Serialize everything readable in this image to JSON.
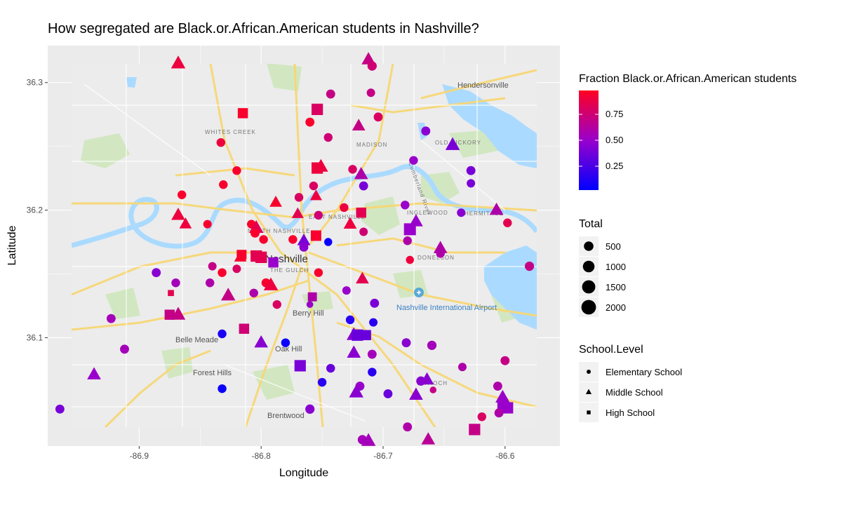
{
  "chart_data": {
    "type": "scatter",
    "title": "How segregated are Black.or.African.American students in Nashville?",
    "xlabel": "Longitude",
    "ylabel": "Latitude",
    "xlim": [
      -86.975,
      -86.555
    ],
    "ylim": [
      36.015,
      36.329
    ],
    "x_ticks": [
      -86.9,
      -86.8,
      -86.7,
      -86.6
    ],
    "x_tick_labels": [
      "-86.9",
      "-86.8",
      "-86.7",
      "-86.6"
    ],
    "y_ticks": [
      36.1,
      36.2,
      36.3
    ],
    "y_tick_labels": [
      "36.1",
      "36.2",
      "36.3"
    ],
    "grid": true,
    "legend_position": "right",
    "color_legend": {
      "title": "Fraction Black.or.African.American students",
      "ticks": [
        0.25,
        0.5,
        0.75
      ],
      "tick_labels": [
        "0.25",
        "0.50",
        "0.75"
      ],
      "range": [
        0.02,
        0.98
      ],
      "low_color": "#0000ff",
      "mid_color": "#9900cc",
      "high_color": "#ff0022"
    },
    "size_legend": {
      "title": "Total",
      "values": [
        500,
        1000,
        1500,
        2000
      ],
      "labels": [
        "500",
        "1000",
        "1500",
        "2000"
      ]
    },
    "shape_legend": {
      "title": "School.Level",
      "items": [
        {
          "label": "Elementary School",
          "shape": "circle"
        },
        {
          "label": "Middle School",
          "shape": "triangle"
        },
        {
          "label": "High School",
          "shape": "square"
        }
      ]
    },
    "points": [
      {
        "lon": -86.868,
        "lat": 36.315,
        "frac": 0.9,
        "total": 700,
        "shape": "triangle"
      },
      {
        "lon": -86.712,
        "lat": 36.318,
        "frac": 0.7,
        "total": 600,
        "shape": "triangle"
      },
      {
        "lon": -86.709,
        "lat": 36.313,
        "frac": 0.75,
        "total": 450,
        "shape": "circle"
      },
      {
        "lon": -86.815,
        "lat": 36.276,
        "frac": 0.95,
        "total": 900,
        "shape": "square"
      },
      {
        "lon": -86.743,
        "lat": 36.291,
        "frac": 0.7,
        "total": 400,
        "shape": "circle"
      },
      {
        "lon": -86.71,
        "lat": 36.292,
        "frac": 0.7,
        "total": 300,
        "shape": "circle"
      },
      {
        "lon": -86.754,
        "lat": 36.279,
        "frac": 0.8,
        "total": 1300,
        "shape": "square"
      },
      {
        "lon": -86.76,
        "lat": 36.269,
        "frac": 0.95,
        "total": 400,
        "shape": "circle"
      },
      {
        "lon": -86.704,
        "lat": 36.273,
        "frac": 0.8,
        "total": 400,
        "shape": "circle"
      },
      {
        "lon": -86.72,
        "lat": 36.266,
        "frac": 0.7,
        "total": 500,
        "shape": "triangle"
      },
      {
        "lon": -86.745,
        "lat": 36.257,
        "frac": 0.75,
        "total": 350,
        "shape": "circle"
      },
      {
        "lon": -86.833,
        "lat": 36.253,
        "frac": 0.9,
        "total": 350,
        "shape": "circle"
      },
      {
        "lon": -86.665,
        "lat": 36.262,
        "frac": 0.45,
        "total": 400,
        "shape": "circle"
      },
      {
        "lon": -86.643,
        "lat": 36.251,
        "frac": 0.4,
        "total": 700,
        "shape": "triangle"
      },
      {
        "lon": -86.675,
        "lat": 36.239,
        "frac": 0.5,
        "total": 350,
        "shape": "circle"
      },
      {
        "lon": -86.754,
        "lat": 36.233,
        "frac": 0.9,
        "total": 1300,
        "shape": "square"
      },
      {
        "lon": -86.751,
        "lat": 36.234,
        "frac": 0.9,
        "total": 700,
        "shape": "triangle"
      },
      {
        "lon": -86.725,
        "lat": 36.232,
        "frac": 0.8,
        "total": 350,
        "shape": "circle"
      },
      {
        "lon": -86.718,
        "lat": 36.228,
        "frac": 0.6,
        "total": 600,
        "shape": "triangle"
      },
      {
        "lon": -86.82,
        "lat": 36.231,
        "frac": 0.95,
        "total": 350,
        "shape": "circle"
      },
      {
        "lon": -86.628,
        "lat": 36.231,
        "frac": 0.4,
        "total": 400,
        "shape": "circle"
      },
      {
        "lon": -86.628,
        "lat": 36.221,
        "frac": 0.4,
        "total": 300,
        "shape": "circle"
      },
      {
        "lon": -86.831,
        "lat": 36.22,
        "frac": 0.95,
        "total": 350,
        "shape": "circle"
      },
      {
        "lon": -86.757,
        "lat": 36.219,
        "frac": 0.8,
        "total": 350,
        "shape": "circle"
      },
      {
        "lon": -86.716,
        "lat": 36.219,
        "frac": 0.4,
        "total": 400,
        "shape": "circle"
      },
      {
        "lon": -86.865,
        "lat": 36.212,
        "frac": 0.95,
        "total": 350,
        "shape": "circle"
      },
      {
        "lon": -86.788,
        "lat": 36.206,
        "frac": 0.95,
        "total": 400,
        "shape": "triangle"
      },
      {
        "lon": -86.769,
        "lat": 36.21,
        "frac": 0.8,
        "total": 350,
        "shape": "circle"
      },
      {
        "lon": -86.755,
        "lat": 36.211,
        "frac": 0.9,
        "total": 350,
        "shape": "triangle"
      },
      {
        "lon": -86.682,
        "lat": 36.204,
        "frac": 0.5,
        "total": 350,
        "shape": "circle"
      },
      {
        "lon": -86.732,
        "lat": 36.202,
        "frac": 0.9,
        "total": 350,
        "shape": "circle"
      },
      {
        "lon": -86.753,
        "lat": 36.196,
        "frac": 0.75,
        "total": 350,
        "shape": "circle"
      },
      {
        "lon": -86.718,
        "lat": 36.198,
        "frac": 0.85,
        "total": 900,
        "shape": "square"
      },
      {
        "lon": -86.636,
        "lat": 36.198,
        "frac": 0.45,
        "total": 300,
        "shape": "circle"
      },
      {
        "lon": -86.607,
        "lat": 36.2,
        "frac": 0.6,
        "total": 600,
        "shape": "triangle"
      },
      {
        "lon": -86.77,
        "lat": 36.197,
        "frac": 0.85,
        "total": 350,
        "shape": "triangle"
      },
      {
        "lon": -86.868,
        "lat": 36.196,
        "frac": 0.9,
        "total": 600,
        "shape": "triangle"
      },
      {
        "lon": -86.862,
        "lat": 36.189,
        "frac": 0.9,
        "total": 400,
        "shape": "triangle"
      },
      {
        "lon": -86.844,
        "lat": 36.189,
        "frac": 0.95,
        "total": 300,
        "shape": "circle"
      },
      {
        "lon": -86.808,
        "lat": 36.189,
        "frac": 0.95,
        "total": 350,
        "shape": "circle"
      },
      {
        "lon": -86.804,
        "lat": 36.186,
        "frac": 0.85,
        "total": 700,
        "shape": "triangle"
      },
      {
        "lon": -86.727,
        "lat": 36.189,
        "frac": 0.9,
        "total": 500,
        "shape": "triangle"
      },
      {
        "lon": -86.598,
        "lat": 36.19,
        "frac": 0.85,
        "total": 350,
        "shape": "circle"
      },
      {
        "lon": -86.673,
        "lat": 36.191,
        "frac": 0.5,
        "total": 600,
        "shape": "triangle"
      },
      {
        "lon": -86.678,
        "lat": 36.185,
        "frac": 0.5,
        "total": 1500,
        "shape": "square"
      },
      {
        "lon": -86.716,
        "lat": 36.183,
        "frac": 0.75,
        "total": 300,
        "shape": "circle"
      },
      {
        "lon": -86.755,
        "lat": 36.18,
        "frac": 0.95,
        "total": 1000,
        "shape": "square"
      },
      {
        "lon": -86.765,
        "lat": 36.176,
        "frac": 0.4,
        "total": 500,
        "shape": "triangle"
      },
      {
        "lon": -86.805,
        "lat": 36.182,
        "frac": 0.95,
        "total": 400,
        "shape": "circle"
      },
      {
        "lon": -86.798,
        "lat": 36.177,
        "frac": 0.95,
        "total": 350,
        "shape": "circle"
      },
      {
        "lon": -86.774,
        "lat": 36.177,
        "frac": 0.95,
        "total": 350,
        "shape": "circle"
      },
      {
        "lon": -86.745,
        "lat": 36.175,
        "frac": 0.05,
        "total": 250,
        "shape": "circle"
      },
      {
        "lon": -86.765,
        "lat": 36.171,
        "frac": 0.45,
        "total": 400,
        "shape": "circle"
      },
      {
        "lon": -86.68,
        "lat": 36.176,
        "frac": 0.6,
        "total": 350,
        "shape": "circle"
      },
      {
        "lon": -86.653,
        "lat": 36.17,
        "frac": 0.6,
        "total": 600,
        "shape": "triangle"
      },
      {
        "lon": -86.653,
        "lat": 36.166,
        "frac": 0.6,
        "total": 350,
        "shape": "circle"
      },
      {
        "lon": -86.816,
        "lat": 36.165,
        "frac": 0.95,
        "total": 800,
        "shape": "square"
      },
      {
        "lon": -86.804,
        "lat": 36.164,
        "frac": 0.85,
        "total": 1300,
        "shape": "square"
      },
      {
        "lon": -86.8,
        "lat": 36.163,
        "frac": 0.85,
        "total": 1300,
        "shape": "square"
      },
      {
        "lon": -86.817,
        "lat": 36.163,
        "frac": 0.95,
        "total": 400,
        "shape": "triangle"
      },
      {
        "lon": -86.79,
        "lat": 36.159,
        "frac": 0.5,
        "total": 900,
        "shape": "square"
      },
      {
        "lon": -86.678,
        "lat": 36.161,
        "frac": 0.9,
        "total": 250,
        "shape": "circle"
      },
      {
        "lon": -86.58,
        "lat": 36.156,
        "frac": 0.7,
        "total": 450,
        "shape": "circle"
      },
      {
        "lon": -86.84,
        "lat": 36.156,
        "frac": 0.7,
        "total": 300,
        "shape": "circle"
      },
      {
        "lon": -86.82,
        "lat": 36.154,
        "frac": 0.8,
        "total": 300,
        "shape": "circle"
      },
      {
        "lon": -86.886,
        "lat": 36.151,
        "frac": 0.45,
        "total": 400,
        "shape": "circle"
      },
      {
        "lon": -86.832,
        "lat": 36.151,
        "frac": 0.95,
        "total": 350,
        "shape": "circle"
      },
      {
        "lon": -86.753,
        "lat": 36.151,
        "frac": 0.95,
        "total": 350,
        "shape": "circle"
      },
      {
        "lon": -86.717,
        "lat": 36.146,
        "frac": 0.85,
        "total": 500,
        "shape": "triangle"
      },
      {
        "lon": -86.796,
        "lat": 36.143,
        "frac": 0.95,
        "total": 400,
        "shape": "circle"
      },
      {
        "lon": -86.792,
        "lat": 36.141,
        "frac": 0.9,
        "total": 700,
        "shape": "triangle"
      },
      {
        "lon": -86.842,
        "lat": 36.143,
        "frac": 0.6,
        "total": 350,
        "shape": "circle"
      },
      {
        "lon": -86.87,
        "lat": 36.143,
        "frac": 0.55,
        "total": 350,
        "shape": "circle"
      },
      {
        "lon": -86.806,
        "lat": 36.135,
        "frac": 0.6,
        "total": 350,
        "shape": "circle"
      },
      {
        "lon": -86.827,
        "lat": 36.133,
        "frac": 0.7,
        "total": 700,
        "shape": "triangle"
      },
      {
        "lon": -86.73,
        "lat": 36.137,
        "frac": 0.5,
        "total": 300,
        "shape": "circle"
      },
      {
        "lon": -86.758,
        "lat": 36.132,
        "frac": 0.6,
        "total": 600,
        "shape": "square"
      },
      {
        "lon": -86.874,
        "lat": 36.135,
        "frac": 0.85,
        "total": 100,
        "shape": "square"
      },
      {
        "lon": -86.787,
        "lat": 36.126,
        "frac": 0.8,
        "total": 350,
        "shape": "circle"
      },
      {
        "lon": -86.76,
        "lat": 36.126,
        "frac": 0.5,
        "total": 100,
        "shape": "circle"
      },
      {
        "lon": -86.707,
        "lat": 36.127,
        "frac": 0.4,
        "total": 400,
        "shape": "circle"
      },
      {
        "lon": -86.875,
        "lat": 36.118,
        "frac": 0.7,
        "total": 900,
        "shape": "square"
      },
      {
        "lon": -86.868,
        "lat": 36.118,
        "frac": 0.7,
        "total": 700,
        "shape": "triangle"
      },
      {
        "lon": -86.923,
        "lat": 36.115,
        "frac": 0.55,
        "total": 400,
        "shape": "circle"
      },
      {
        "lon": -86.814,
        "lat": 36.107,
        "frac": 0.75,
        "total": 900,
        "shape": "square"
      },
      {
        "lon": -86.727,
        "lat": 36.114,
        "frac": 0.15,
        "total": 350,
        "shape": "circle"
      },
      {
        "lon": -86.708,
        "lat": 36.112,
        "frac": 0.15,
        "total": 300,
        "shape": "circle"
      },
      {
        "lon": -86.832,
        "lat": 36.103,
        "frac": 0.1,
        "total": 350,
        "shape": "circle"
      },
      {
        "lon": -86.724,
        "lat": 36.102,
        "frac": 0.45,
        "total": 700,
        "shape": "triangle"
      },
      {
        "lon": -86.721,
        "lat": 36.102,
        "frac": 0.35,
        "total": 1300,
        "shape": "square"
      },
      {
        "lon": -86.714,
        "lat": 36.102,
        "frac": 0.35,
        "total": 900,
        "shape": "square"
      },
      {
        "lon": -86.8,
        "lat": 36.096,
        "frac": 0.45,
        "total": 600,
        "shape": "triangle"
      },
      {
        "lon": -86.78,
        "lat": 36.096,
        "frac": 0.05,
        "total": 350,
        "shape": "circle"
      },
      {
        "lon": -86.681,
        "lat": 36.096,
        "frac": 0.45,
        "total": 400,
        "shape": "circle"
      },
      {
        "lon": -86.66,
        "lat": 36.094,
        "frac": 0.55,
        "total": 450,
        "shape": "circle"
      },
      {
        "lon": -86.912,
        "lat": 36.091,
        "frac": 0.55,
        "total": 400,
        "shape": "circle"
      },
      {
        "lon": -86.724,
        "lat": 36.088,
        "frac": 0.45,
        "total": 600,
        "shape": "triangle"
      },
      {
        "lon": -86.709,
        "lat": 36.087,
        "frac": 0.55,
        "total": 400,
        "shape": "circle"
      },
      {
        "lon": -86.6,
        "lat": 36.082,
        "frac": 0.7,
        "total": 400,
        "shape": "circle"
      },
      {
        "lon": -86.768,
        "lat": 36.078,
        "frac": 0.4,
        "total": 1300,
        "shape": "square"
      },
      {
        "lon": -86.743,
        "lat": 36.076,
        "frac": 0.35,
        "total": 350,
        "shape": "circle"
      },
      {
        "lon": -86.635,
        "lat": 36.077,
        "frac": 0.6,
        "total": 300,
        "shape": "circle"
      },
      {
        "lon": -86.937,
        "lat": 36.071,
        "frac": 0.5,
        "total": 600,
        "shape": "triangle"
      },
      {
        "lon": -86.709,
        "lat": 36.073,
        "frac": 0.15,
        "total": 350,
        "shape": "circle"
      },
      {
        "lon": -86.664,
        "lat": 36.067,
        "frac": 0.45,
        "total": 600,
        "shape": "triangle"
      },
      {
        "lon": -86.669,
        "lat": 36.066,
        "frac": 0.45,
        "total": 450,
        "shape": "circle"
      },
      {
        "lon": -86.75,
        "lat": 36.065,
        "frac": 0.15,
        "total": 350,
        "shape": "circle"
      },
      {
        "lon": -86.719,
        "lat": 36.062,
        "frac": 0.5,
        "total": 400,
        "shape": "circle"
      },
      {
        "lon": -86.606,
        "lat": 36.062,
        "frac": 0.6,
        "total": 400,
        "shape": "circle"
      },
      {
        "lon": -86.832,
        "lat": 36.06,
        "frac": 0.05,
        "total": 350,
        "shape": "circle"
      },
      {
        "lon": -86.722,
        "lat": 36.057,
        "frac": 0.45,
        "total": 700,
        "shape": "triangle"
      },
      {
        "lon": -86.696,
        "lat": 36.056,
        "frac": 0.35,
        "total": 400,
        "shape": "circle"
      },
      {
        "lon": -86.673,
        "lat": 36.055,
        "frac": 0.45,
        "total": 600,
        "shape": "triangle"
      },
      {
        "lon": -86.659,
        "lat": 36.059,
        "frac": 0.7,
        "total": 100,
        "shape": "circle"
      },
      {
        "lon": -86.602,
        "lat": 36.053,
        "frac": 0.5,
        "total": 700,
        "shape": "triangle"
      },
      {
        "lon": -86.602,
        "lat": 36.048,
        "frac": 0.5,
        "total": 1000,
        "shape": "square"
      },
      {
        "lon": -86.598,
        "lat": 36.045,
        "frac": 0.5,
        "total": 1300,
        "shape": "square"
      },
      {
        "lon": -86.605,
        "lat": 36.041,
        "frac": 0.6,
        "total": 400,
        "shape": "circle"
      },
      {
        "lon": -86.965,
        "lat": 36.044,
        "frac": 0.4,
        "total": 400,
        "shape": "circle"
      },
      {
        "lon": -86.76,
        "lat": 36.044,
        "frac": 0.45,
        "total": 450,
        "shape": "circle"
      },
      {
        "lon": -86.619,
        "lat": 36.038,
        "frac": 0.8,
        "total": 350,
        "shape": "circle"
      },
      {
        "lon": -86.68,
        "lat": 36.03,
        "frac": 0.6,
        "total": 400,
        "shape": "circle"
      },
      {
        "lon": -86.625,
        "lat": 36.028,
        "frac": 0.7,
        "total": 1300,
        "shape": "square"
      },
      {
        "lon": -86.663,
        "lat": 36.02,
        "frac": 0.65,
        "total": 600,
        "shape": "triangle"
      },
      {
        "lon": -86.717,
        "lat": 36.02,
        "frac": 0.55,
        "total": 450,
        "shape": "circle"
      },
      {
        "lon": -86.712,
        "lat": 36.019,
        "frac": 0.55,
        "total": 700,
        "shape": "triangle"
      }
    ]
  },
  "map": {
    "labels": {
      "hendersonville": "Hendersonville",
      "whites_creek": "WHITES CREEK",
      "madison": "MADISON",
      "old_hickory": "OLD HICKORY",
      "east_nashville": "EAST NASHVILLE",
      "north_nashville": "NORTH NASHVILLE",
      "inglewood": "INGLEWOOD",
      "nashville": "Nashville",
      "the_gulch": "THE GULCH",
      "donelson": "DONELSON",
      "hermitage": "HERMITAGE",
      "airport": "Nashville International Airport",
      "berry_hill": "Berry Hill",
      "belle_meade": "Belle Meade",
      "oak_hill": "Oak Hill",
      "forest_hills": "Forest Hills",
      "antioch": "ANTIOCH",
      "brentwood": "Brentwood",
      "cumberland": "Cumberland River"
    },
    "water_color": "#aadaff",
    "park_color": "#c8e6b4",
    "road_color": "#f9dd6e",
    "land_color": "#eaeaea"
  }
}
